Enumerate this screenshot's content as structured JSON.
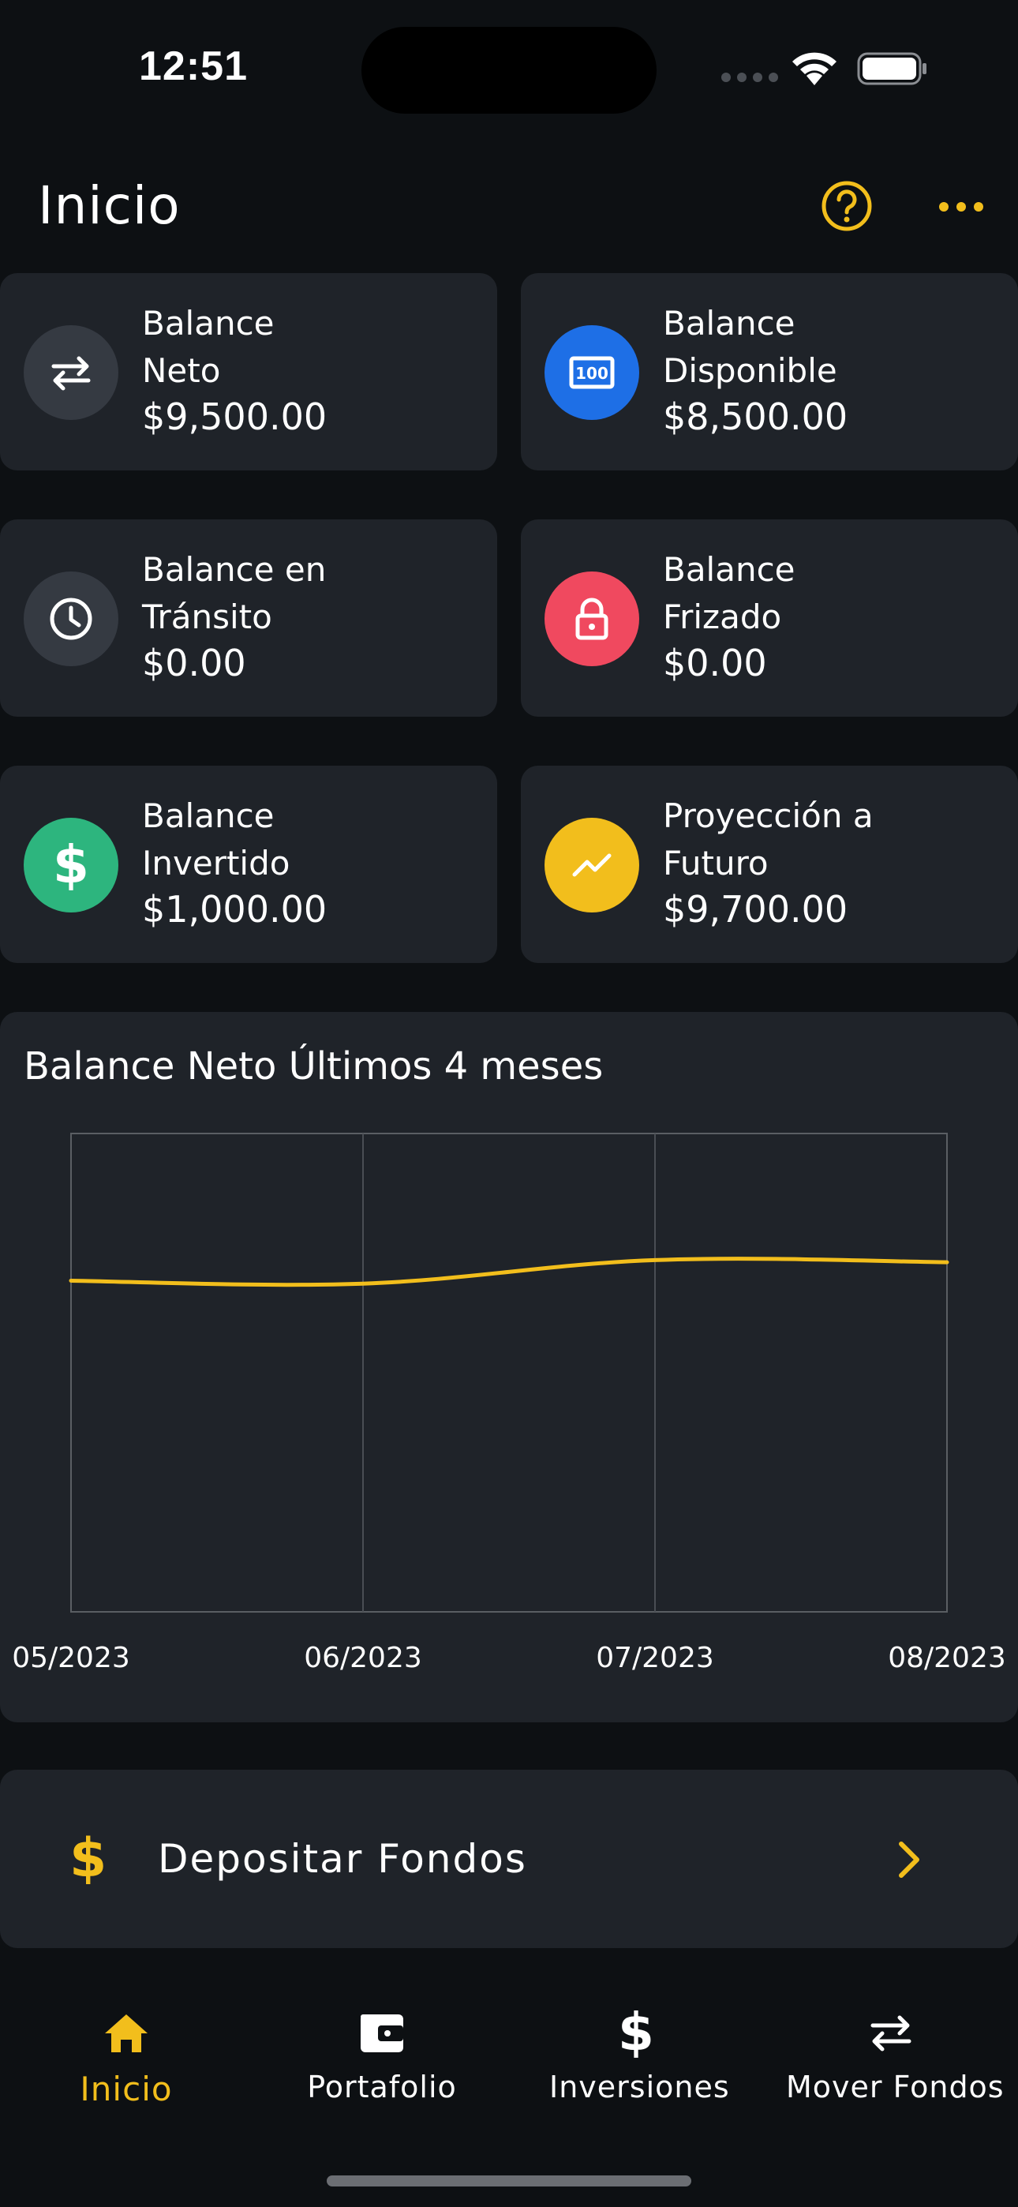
{
  "status_bar": {
    "time": "12:51"
  },
  "header": {
    "title": "Inicio",
    "help_icon": "help-circle-icon",
    "more_icon": "more-horizontal-icon"
  },
  "colors": {
    "accent": "#f2be1c",
    "card_bg": "#1f2329",
    "background": "#0d1013",
    "blue": "#1e6fe6",
    "red": "#f0495f",
    "green": "#2db57e",
    "yellow": "#f2be1c",
    "gray_icon": "#353a42"
  },
  "cards": [
    {
      "label_line1": "Balance",
      "label_line2": "Neto",
      "value": "$9,500.00",
      "icon": "transfer-arrows-icon",
      "icon_color": "#353a42"
    },
    {
      "label_line1": "Balance",
      "label_line2": "Disponible",
      "value": "$8,500.00",
      "icon": "banknote-icon",
      "icon_color": "#1e6fe6"
    },
    {
      "label_line1": "Balance en",
      "label_line2": "Tránsito",
      "value": "$0.00",
      "icon": "clock-icon",
      "icon_color": "#353a42"
    },
    {
      "label_line1": "Balance",
      "label_line2": "Frizado",
      "value": "$0.00",
      "icon": "lock-icon",
      "icon_color": "#f0495f"
    },
    {
      "label_line1": "Balance",
      "label_line2": "Invertido",
      "value": "$1,000.00",
      "icon": "dollar-icon",
      "icon_color": "#2db57e"
    },
    {
      "label_line1": "Proyección a",
      "label_line2": "Futuro",
      "value": "$9,700.00",
      "icon": "trending-up-icon",
      "icon_color": "#f2be1c"
    }
  ],
  "chart_data": {
    "type": "line",
    "title": "Balance Neto Últimos 4 meses",
    "categories": [
      "05/2023",
      "06/2023",
      "07/2023",
      "08/2023"
    ],
    "series": [
      {
        "values": [
          9000,
          8920,
          9560,
          9500
        ]
      }
    ],
    "ylim": [
      0,
      13000
    ],
    "grid": true,
    "line_color": "#f2be1c"
  },
  "deposit": {
    "label": "Depositar Fondos",
    "icon": "dollar-icon"
  },
  "nav": [
    {
      "label": "Inicio",
      "icon": "home-icon",
      "active": true
    },
    {
      "label": "Portafolio",
      "icon": "wallet-icon",
      "active": false
    },
    {
      "label": "Inversiones",
      "icon": "dollar-icon",
      "active": false
    },
    {
      "label": "Mover Fondos",
      "icon": "transfer-arrows-icon",
      "active": false
    }
  ]
}
